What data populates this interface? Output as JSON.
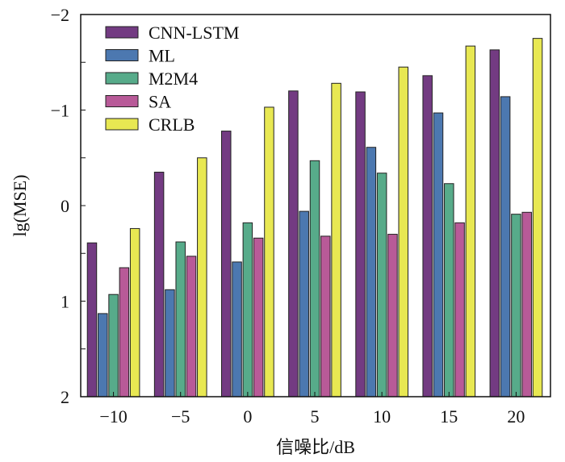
{
  "chart_data": {
    "type": "bar",
    "title": "",
    "xlabel": "信噪比/dB",
    "ylabel": "lg(MSE)",
    "y_inverted": true,
    "ylim": [
      -2,
      2
    ],
    "yticks": [
      -2,
      -1,
      0,
      1,
      2
    ],
    "ytick_labels": [
      "−2",
      "−1",
      "0",
      "1",
      "2"
    ],
    "categories": [
      "−10",
      "−5",
      "0",
      "5",
      "10",
      "15",
      "20"
    ],
    "legend_position": "top-left",
    "series": [
      {
        "name": "CNN-LSTM",
        "color": "#733b82",
        "values": [
          0.39,
          -0.35,
          -0.78,
          -1.2,
          -1.19,
          -1.36,
          -1.63
        ]
      },
      {
        "name": "ML",
        "color": "#4c78b0",
        "values": [
          1.13,
          0.88,
          0.59,
          0.06,
          -0.61,
          -0.97,
          -1.14
        ]
      },
      {
        "name": "M2M4",
        "color": "#57ab8a",
        "values": [
          0.93,
          0.38,
          0.18,
          -0.47,
          -0.34,
          -0.23,
          0.09
        ]
      },
      {
        "name": "SA",
        "color": "#b85a98",
        "values": [
          0.65,
          0.53,
          0.34,
          0.32,
          0.3,
          0.18,
          0.07
        ]
      },
      {
        "name": "CRLB",
        "color": "#e8e852",
        "values": [
          0.24,
          -0.5,
          -1.03,
          -1.28,
          -1.45,
          -1.67,
          -1.75
        ]
      }
    ]
  }
}
